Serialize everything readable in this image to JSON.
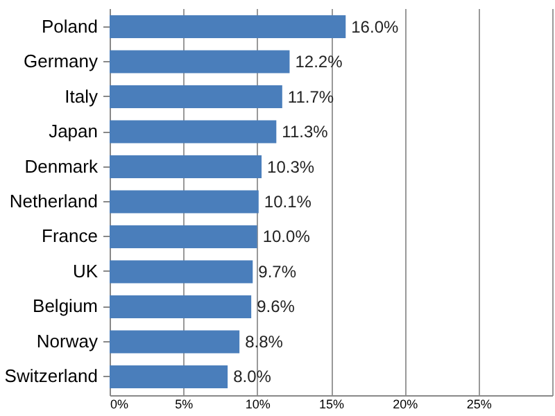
{
  "chart_data": {
    "type": "bar",
    "orientation": "horizontal",
    "categories": [
      "Poland",
      "Germany",
      "Italy",
      "Japan",
      "Denmark",
      "Netherland",
      "France",
      "UK",
      "Belgium",
      "Norway",
      "Switzerland"
    ],
    "values": [
      16.0,
      12.2,
      11.7,
      11.3,
      10.3,
      10.1,
      10.0,
      9.7,
      9.6,
      8.8,
      8.0
    ],
    "value_labels": [
      "16.0%",
      "12.2%",
      "11.7%",
      "11.3%",
      "10.3%",
      "10.1%",
      "10.0%",
      "9.7%",
      "9.6%",
      "8.8%",
      "8.0%"
    ],
    "color": "#4a7ebb",
    "xlim": [
      0,
      30
    ],
    "xticks": [
      {
        "value": 0,
        "label": "0%"
      },
      {
        "value": 5,
        "label": "5%"
      },
      {
        "value": 10,
        "label": "10%"
      },
      {
        "value": 15,
        "label": "15%"
      },
      {
        "value": 20,
        "label": "20%"
      },
      {
        "value": 25,
        "label": "25%"
      },
      {
        "value": 30,
        "label": null
      }
    ],
    "grid": "x"
  }
}
